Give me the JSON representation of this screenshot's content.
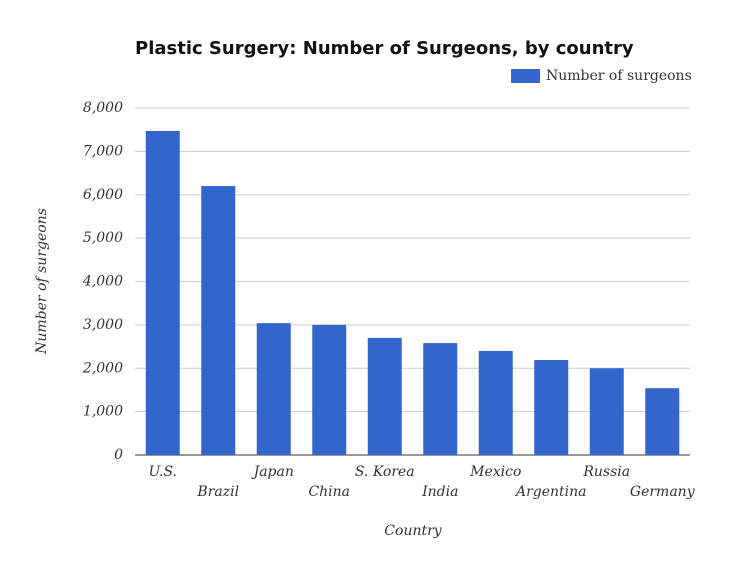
{
  "chart_data": {
    "type": "bar",
    "title": "Plastic Surgery: Number of Surgeons, by country",
    "x_label": "Country",
    "y_label": "Number of surgeons",
    "categories": [
      "U.S.",
      "Brazil",
      "Japan",
      "China",
      "S. Korea",
      "India",
      "Mexico",
      "Argentina",
      "Russia",
      "Germany"
    ],
    "series": [
      {
        "name": "Number of surgeons",
        "color": "#3366cc",
        "values": [
          7470,
          6200,
          3040,
          3000,
          2700,
          2580,
          2400,
          2190,
          2000,
          1540
        ]
      }
    ],
    "ylim": [
      0,
      8000
    ],
    "yticks": [
      0,
      {
        "value": 1000,
        "label": "1,000"
      },
      {
        "value": 2000,
        "label": "2,000"
      },
      {
        "value": 3000,
        "label": "3,000"
      },
      {
        "value": 4000,
        "label": "4,000"
      },
      {
        "value": 5000,
        "label": "5,000"
      },
      {
        "value": 6000,
        "label": "6,000"
      },
      {
        "value": 7000,
        "label": "7,000"
      },
      {
        "value": 8000,
        "label": "8,000"
      }
    ],
    "grid": true,
    "legend": "top-right"
  }
}
